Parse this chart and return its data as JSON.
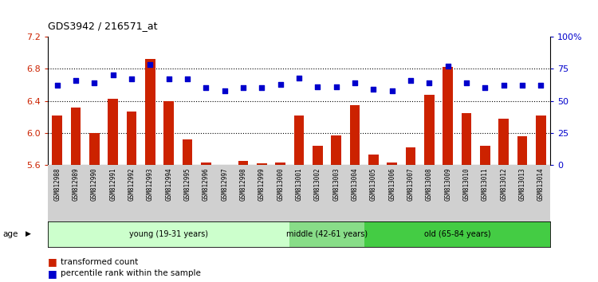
{
  "title": "GDS3942 / 216571_at",
  "samples": [
    "GSM812988",
    "GSM812989",
    "GSM812990",
    "GSM812991",
    "GSM812992",
    "GSM812993",
    "GSM812994",
    "GSM812995",
    "GSM812996",
    "GSM812997",
    "GSM812998",
    "GSM812999",
    "GSM813000",
    "GSM813001",
    "GSM813002",
    "GSM813003",
    "GSM813004",
    "GSM813005",
    "GSM813006",
    "GSM813007",
    "GSM813008",
    "GSM813009",
    "GSM813010",
    "GSM813011",
    "GSM813012",
    "GSM813013",
    "GSM813014"
  ],
  "transformed_count": [
    6.22,
    6.32,
    6.0,
    6.43,
    6.27,
    6.92,
    6.4,
    5.92,
    5.63,
    5.58,
    5.65,
    5.62,
    5.63,
    6.22,
    5.84,
    5.97,
    6.35,
    5.73,
    5.63,
    5.82,
    6.48,
    6.82,
    6.25,
    5.84,
    6.18,
    5.96,
    6.22
  ],
  "percentile_rank": [
    62,
    66,
    64,
    70,
    67,
    78,
    67,
    67,
    60,
    58,
    60,
    60,
    63,
    68,
    61,
    61,
    64,
    59,
    58,
    66,
    64,
    77,
    64,
    60,
    62,
    62,
    62
  ],
  "groups": [
    {
      "label": "young (19-31 years)",
      "start": 0,
      "end": 13,
      "color": "#ccffcc"
    },
    {
      "label": "middle (42-61 years)",
      "start": 13,
      "end": 17,
      "color": "#88dd88"
    },
    {
      "label": "old (65-84 years)",
      "start": 17,
      "end": 27,
      "color": "#44cc44"
    }
  ],
  "ylim_left": [
    5.6,
    7.2
  ],
  "ylim_right": [
    0,
    100
  ],
  "yticks_left": [
    5.6,
    6.0,
    6.4,
    6.8,
    7.2
  ],
  "yticks_right": [
    0,
    25,
    50,
    75,
    100
  ],
  "bar_color": "#cc2200",
  "dot_color": "#0000cc",
  "hgrid_vals": [
    6.0,
    6.4,
    6.8
  ],
  "label_bg": "#d0d0d0"
}
